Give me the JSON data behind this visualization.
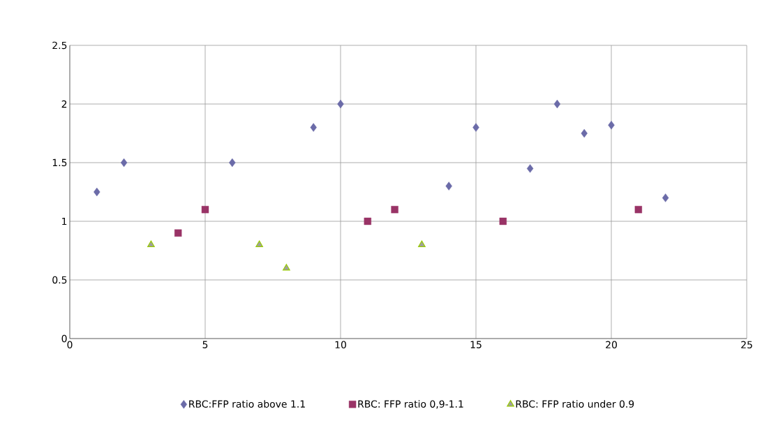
{
  "chart_data": {
    "type": "scatter",
    "series": [
      {
        "name": "RBC:FFP ratio above 1.1",
        "color": "#6b6ba8",
        "marker": "diamond",
        "x": [
          1,
          2,
          6,
          9,
          10,
          14,
          15,
          17,
          18,
          19,
          20,
          22
        ],
        "values": [
          1.25,
          1.5,
          1.5,
          1.8,
          2.0,
          1.3,
          1.8,
          1.45,
          2.0,
          1.75,
          1.82,
          1.2
        ]
      },
      {
        "name": "RBC: FFP ratio 0,9-1.1",
        "color": "#993366",
        "marker": "square",
        "x": [
          4,
          5,
          11,
          12,
          16,
          21
        ],
        "values": [
          0.9,
          1.1,
          1.0,
          1.1,
          1.0,
          1.1
        ]
      },
      {
        "name": "RBC: FFP ratio under 0.9",
        "color": "#99cc00",
        "marker": "triangle",
        "x": [
          3,
          7,
          8,
          13
        ],
        "values": [
          0.8,
          0.8,
          0.6,
          0.8
        ]
      }
    ],
    "xlim": [
      0,
      25
    ],
    "xticks": [
      0,
      5,
      10,
      15,
      20,
      25
    ],
    "ylim": [
      0,
      2.5
    ],
    "yticks": [
      0,
      0.5,
      1,
      1.5,
      2,
      2.5
    ],
    "grid": true,
    "legend": "bottom"
  }
}
